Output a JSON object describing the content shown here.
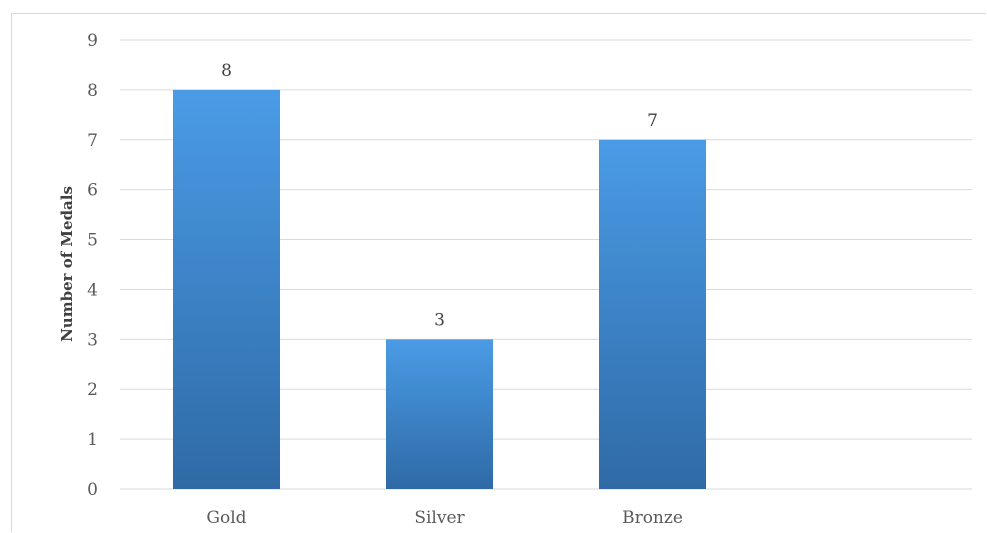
{
  "chart_data": {
    "type": "bar",
    "categories": [
      "Gold",
      "Silver",
      "Bronze"
    ],
    "values": [
      8,
      3,
      7
    ],
    "title": "",
    "xlabel": "",
    "ylabel": "Number of Medals",
    "ylim": [
      0,
      9
    ],
    "yticks": [
      "0",
      "1",
      "2",
      "3",
      "4",
      "5",
      "6",
      "7",
      "8",
      "9"
    ],
    "data_labels": [
      "8",
      "3",
      "7"
    ],
    "grid": true,
    "legend": "none",
    "colors": {
      "bar_top": "#4a9be6",
      "bar_bottom": "#2f6aa6",
      "grid": "#d9d9d9",
      "text": "#595959"
    }
  }
}
